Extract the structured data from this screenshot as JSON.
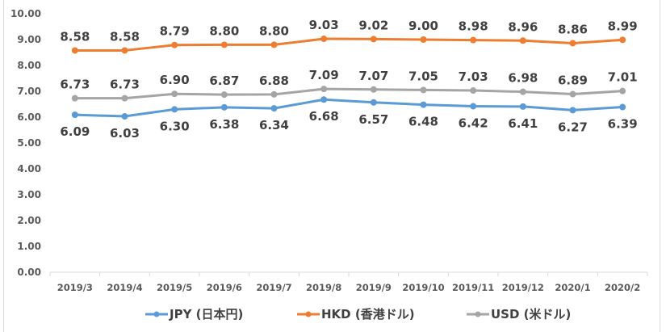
{
  "chart_data": {
    "type": "line",
    "title": "",
    "xlabel": "",
    "ylabel": "",
    "ylim": [
      0,
      10
    ],
    "y_ticks": [
      "0.00",
      "1.00",
      "2.00",
      "3.00",
      "4.00",
      "5.00",
      "6.00",
      "7.00",
      "8.00",
      "9.00",
      "10.00"
    ],
    "grid": false,
    "legend_position": "bottom",
    "categories": [
      "2019/3",
      "2019/4",
      "2019/5",
      "2019/6",
      "2019/7",
      "2019/8",
      "2019/9",
      "2019/10",
      "2019/11",
      "2019/12",
      "2020/1",
      "2020/2"
    ],
    "series": [
      {
        "name": "JPY (日本円)",
        "color": "#5B9BD5",
        "label_position": "below",
        "values": [
          6.09,
          6.03,
          6.3,
          6.38,
          6.34,
          6.68,
          6.57,
          6.48,
          6.42,
          6.41,
          6.27,
          6.39
        ]
      },
      {
        "name": "HKD (香港ドル)",
        "color": "#ED7D31",
        "label_position": "above",
        "values": [
          8.58,
          8.58,
          8.79,
          8.8,
          8.8,
          9.03,
          9.02,
          9.0,
          8.98,
          8.96,
          8.86,
          8.99
        ]
      },
      {
        "name": "USD (米ドル)",
        "color": "#A5A5A5",
        "label_position": "above",
        "values": [
          6.73,
          6.73,
          6.9,
          6.87,
          6.88,
          7.09,
          7.07,
          7.05,
          7.03,
          6.98,
          6.89,
          7.01
        ]
      }
    ]
  }
}
